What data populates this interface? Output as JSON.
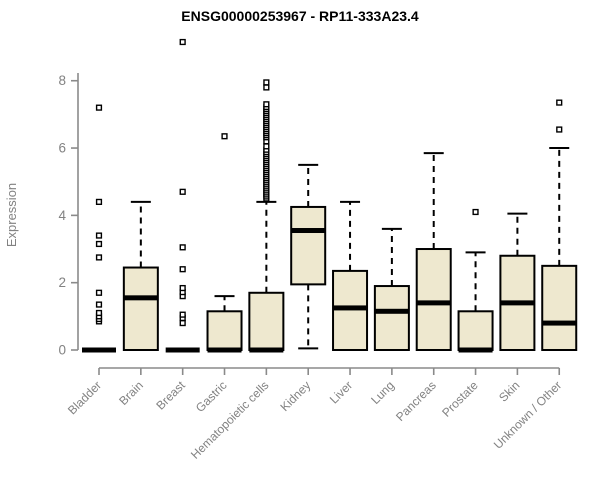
{
  "chart_data": {
    "type": "boxplot",
    "title": "ENSG00000253967 - RP11-333A23.4",
    "ylabel": "Expression",
    "xlabel": "",
    "ylim": [
      0,
      8
    ],
    "yticks": [
      0,
      2,
      4,
      6,
      8
    ],
    "grid": false,
    "legend": "none",
    "categories": [
      "Bladder",
      "Brain",
      "Breast",
      "Gastric",
      "Hematopoietic cells",
      "Kidney",
      "Liver",
      "Lung",
      "Pancreas",
      "Prostate",
      "Skin",
      "Unknown / Other"
    ],
    "boxes": [
      {
        "category": "Bladder",
        "min": 0,
        "q1": 0,
        "median": 0,
        "q3": 0,
        "max": 0,
        "outliers": [
          0.85,
          0.92,
          1.0,
          1.1,
          1.35,
          1.7,
          2.75,
          3.15,
          3.4,
          4.4,
          7.2
        ]
      },
      {
        "category": "Brain",
        "min": 0,
        "q1": 0,
        "median": 1.55,
        "q3": 2.45,
        "max": 4.4,
        "outliers": []
      },
      {
        "category": "Breast",
        "min": 0,
        "q1": 0,
        "median": 0,
        "q3": 0,
        "max": 0,
        "outliers": [
          0.8,
          0.95,
          1.05,
          1.6,
          1.72,
          1.84,
          2.4,
          3.05,
          4.7,
          9.15
        ]
      },
      {
        "category": "Gastric",
        "min": 0,
        "q1": 0,
        "median": 0,
        "q3": 1.15,
        "max": 1.6,
        "outliers": [
          6.35
        ]
      },
      {
        "category": "Hematopoietic cells",
        "min": 0,
        "q1": 0,
        "median": 0,
        "q3": 1.7,
        "max": 4.4,
        "outliers": [
          4.5,
          4.56,
          4.62,
          4.68,
          4.74,
          4.8,
          4.86,
          4.92,
          4.98,
          5.04,
          5.1,
          5.16,
          5.22,
          5.28,
          5.34,
          5.4,
          5.46,
          5.52,
          5.58,
          5.64,
          5.7,
          5.76,
          5.82,
          5.88,
          5.95,
          6.05,
          6.2,
          6.32,
          6.38,
          6.44,
          6.5,
          6.56,
          6.62,
          6.68,
          6.74,
          6.8,
          6.86,
          6.92,
          6.98,
          7.04,
          7.1,
          7.16,
          7.22,
          7.3,
          7.8,
          7.95
        ]
      },
      {
        "category": "Kidney",
        "min": 0.05,
        "q1": 1.95,
        "median": 3.55,
        "q3": 4.25,
        "max": 5.5,
        "outliers": []
      },
      {
        "category": "Liver",
        "min": 0,
        "q1": 0,
        "median": 1.25,
        "q3": 2.35,
        "max": 4.4,
        "outliers": []
      },
      {
        "category": "Lung",
        "min": 0,
        "q1": 0,
        "median": 1.15,
        "q3": 1.9,
        "max": 3.6,
        "outliers": []
      },
      {
        "category": "Pancreas",
        "min": 0,
        "q1": 0,
        "median": 1.4,
        "q3": 3.0,
        "max": 5.85,
        "outliers": []
      },
      {
        "category": "Prostate",
        "min": 0,
        "q1": 0,
        "median": 0,
        "q3": 1.15,
        "max": 2.9,
        "outliers": [
          4.1
        ]
      },
      {
        "category": "Skin",
        "min": 0,
        "q1": 0,
        "median": 1.4,
        "q3": 2.8,
        "max": 4.05,
        "outliers": []
      },
      {
        "category": "Unknown / Other",
        "min": 0,
        "q1": 0,
        "median": 0.8,
        "q3": 2.5,
        "max": 6.0,
        "outliers": [
          6.55,
          7.35
        ]
      }
    ],
    "colors": {
      "box_fill": "#EEE8CF",
      "box_stroke": "#000000",
      "median": "#000000",
      "outlier_stroke": "#000000",
      "outlier_fill": "#ffffff",
      "axis": "#8a8a8a",
      "tick_label": "#828282",
      "title": "#000000"
    }
  }
}
